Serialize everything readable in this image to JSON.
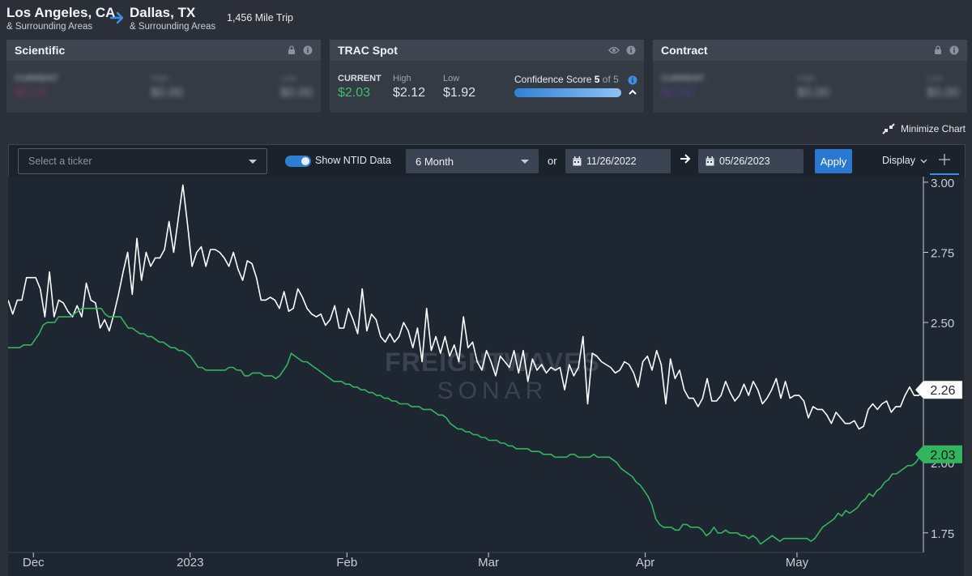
{
  "route": {
    "origin": "Los Angeles, CA",
    "origin_sub": "& Surrounding Areas",
    "destination": "Dallas, TX",
    "destination_sub": "& Surrounding Areas",
    "trip": "1,456 Mile Trip"
  },
  "cards": {
    "scientific": {
      "title": "Scientific",
      "current_label": "CURRENT",
      "current_value": "$0.00",
      "high_label": "High",
      "high_value": "$0.00",
      "low_label": "Low",
      "low_value": "$0.00",
      "current_color": "#b0306a"
    },
    "trac": {
      "title": "TRAC Spot",
      "current_label": "CURRENT",
      "current_value": "$2.03",
      "high_label": "High",
      "high_value": "$2.12",
      "low_label": "Low",
      "low_value": "$1.92",
      "confidence_label": "Confidence Score",
      "confidence_score": "5",
      "confidence_of": "of 5",
      "current_color": "#3fbf6a"
    },
    "contract": {
      "title": "Contract",
      "current_label": "CURRENT",
      "current_value": "$0.00",
      "high_label": "High",
      "high_value": "$0.00",
      "low_label": "Low",
      "low_value": "$0.00",
      "current_color": "#6a3fc2"
    }
  },
  "minimize_label": "Minimize Chart",
  "toolbar": {
    "ticker_placeholder": "Select a ticker",
    "ntid_label": "Show NTID Data",
    "period": "6 Month",
    "or_label": "or",
    "start_date": "11/26/2022",
    "end_date": "05/26/2023",
    "apply_label": "Apply",
    "display_label": "Display"
  },
  "watermark": {
    "line1": "FREIGHTWAVES",
    "line2": "SONAR"
  },
  "chart_data": {
    "type": "line",
    "x_start": "2022-11-26",
    "x_end": "2023-05-26",
    "ylim": [
      1.68,
      3.02
    ],
    "y_ticks": [
      "3.00",
      "2.75",
      "2.50",
      "2.25",
      "2.00",
      "1.75"
    ],
    "x_ticks": [
      {
        "label": "Dec",
        "date": "2022-12-01"
      },
      {
        "label": "2023",
        "date": "2023-01-01"
      },
      {
        "label": "Feb",
        "date": "2023-02-01"
      },
      {
        "label": "Mar",
        "date": "2023-03-01"
      },
      {
        "label": "Apr",
        "date": "2023-04-01"
      },
      {
        "label": "May",
        "date": "2023-05-01"
      }
    ],
    "grid": false,
    "series": [
      {
        "color": "#ffffff",
        "last_label": "2.26",
        "values": [
          2.58,
          2.53,
          2.58,
          2.58,
          2.66,
          2.66,
          2.66,
          2.62,
          2.52,
          2.68,
          2.52,
          2.58,
          2.57,
          2.54,
          2.52,
          2.56,
          2.52,
          2.64,
          2.58,
          2.57,
          2.48,
          2.51,
          2.47,
          2.53,
          2.6,
          2.68,
          2.75,
          2.6,
          2.8,
          2.65,
          2.75,
          2.7,
          2.73,
          2.73,
          2.76,
          2.86,
          2.75,
          2.87,
          2.99,
          2.85,
          2.7,
          2.75,
          2.77,
          2.7,
          2.76,
          2.76,
          2.75,
          2.73,
          2.7,
          2.75,
          2.69,
          2.65,
          2.72,
          2.71,
          2.66,
          2.58,
          2.58,
          2.59,
          2.58,
          2.55,
          2.61,
          2.54,
          2.55,
          2.62,
          2.59,
          2.55,
          2.53,
          2.52,
          2.53,
          2.49,
          2.51,
          2.56,
          2.48,
          2.48,
          2.55,
          2.51,
          2.46,
          2.62,
          2.47,
          2.53,
          2.51,
          2.45,
          2.43,
          2.46,
          2.43,
          2.45,
          2.5,
          2.47,
          2.41,
          2.48,
          2.36,
          2.55,
          2.4,
          2.45,
          2.39,
          2.45,
          2.38,
          2.42,
          2.36,
          2.52,
          2.41,
          2.43,
          2.36,
          2.33,
          2.4,
          2.36,
          2.31,
          2.38,
          2.36,
          2.34,
          2.4,
          2.32,
          2.4,
          2.29,
          2.37,
          2.33,
          2.35,
          2.32,
          2.34,
          2.33,
          2.34,
          2.26,
          2.35,
          2.31,
          2.34,
          2.45,
          2.21,
          2.39,
          2.38,
          2.36,
          2.35,
          2.34,
          2.32,
          2.33,
          2.36,
          2.35,
          2.32,
          2.27,
          2.36,
          2.38,
          2.33,
          2.4,
          2.35,
          2.21,
          2.37,
          2.3,
          2.33,
          2.26,
          2.23,
          2.23,
          2.2,
          2.23,
          2.3,
          2.22,
          2.22,
          2.24,
          2.29,
          2.25,
          2.22,
          2.24,
          2.28,
          2.24,
          2.29,
          2.26,
          2.21,
          2.23,
          2.26,
          2.3,
          2.23,
          2.29,
          2.23,
          2.24,
          2.24,
          2.22,
          2.16,
          2.2,
          2.19,
          2.19,
          2.17,
          2.14,
          2.18,
          2.16,
          2.14,
          2.14,
          2.15,
          2.12,
          2.13,
          2.19,
          2.21,
          2.19,
          2.21,
          2.22,
          2.18,
          2.2,
          2.2,
          2.24,
          2.27,
          2.24,
          2.24,
          2.26
        ]
      },
      {
        "color": "#33b55f",
        "last_label": "2.03",
        "values": [
          2.41,
          2.41,
          2.41,
          2.41,
          2.42,
          2.42,
          2.42,
          2.44,
          2.46,
          2.49,
          2.5,
          2.5,
          2.5,
          2.52,
          2.52,
          2.52,
          2.52,
          2.53,
          2.54,
          2.55,
          2.55,
          2.55,
          2.55,
          2.55,
          2.55,
          2.53,
          2.52,
          2.52,
          2.52,
          2.52,
          2.5,
          2.48,
          2.48,
          2.47,
          2.46,
          2.46,
          2.45,
          2.45,
          2.44,
          2.43,
          2.43,
          2.42,
          2.41,
          2.41,
          2.4,
          2.4,
          2.39,
          2.38,
          2.36,
          2.34,
          2.34,
          2.33,
          2.33,
          2.33,
          2.33,
          2.33,
          2.33,
          2.34,
          2.34,
          2.33,
          2.33,
          2.31,
          2.31,
          2.32,
          2.32,
          2.32,
          2.31,
          2.31,
          2.31,
          2.3,
          2.31,
          2.33,
          2.35,
          2.39,
          2.38,
          2.37,
          2.36,
          2.36,
          2.35,
          2.34,
          2.33,
          2.32,
          2.31,
          2.3,
          2.29,
          2.29,
          2.29,
          2.28,
          2.28,
          2.27,
          2.27,
          2.26,
          2.26,
          2.25,
          2.25,
          2.24,
          2.24,
          2.23,
          2.23,
          2.22,
          2.22,
          2.21,
          2.21,
          2.21,
          2.2,
          2.2,
          2.2,
          2.19,
          2.19,
          2.19,
          2.18,
          2.17,
          2.17,
          2.16,
          2.14,
          2.13,
          2.12,
          2.12,
          2.11,
          2.11,
          2.1,
          2.1,
          2.09,
          2.09,
          2.08,
          2.08,
          2.08,
          2.07,
          2.07,
          2.06,
          2.06,
          2.05,
          2.05,
          2.05,
          2.05,
          2.04,
          2.04,
          2.04,
          2.03,
          2.03,
          2.03,
          2.02,
          2.02,
          2.02,
          2.02,
          2.03,
          2.03,
          2.02,
          2.02,
          2.02,
          2.02,
          2.03,
          2.02,
          2.02,
          2.02,
          2.02,
          2.01,
          2.0,
          1.98,
          1.97,
          1.96,
          1.95,
          1.93,
          1.92,
          1.9,
          1.88,
          1.85,
          1.8,
          1.78,
          1.77,
          1.77,
          1.77,
          1.76,
          1.76,
          1.78,
          1.78,
          1.77,
          1.77,
          1.77,
          1.76,
          1.74,
          1.75,
          1.77,
          1.75,
          1.75,
          1.76,
          1.75,
          1.75,
          1.75,
          1.74,
          1.74,
          1.73,
          1.74,
          1.73,
          1.71,
          1.72,
          1.73,
          1.74,
          1.73,
          1.72,
          1.73,
          1.73,
          1.73,
          1.73,
          1.73,
          1.73,
          1.73,
          1.72,
          1.73,
          1.75,
          1.77,
          1.78,
          1.79,
          1.8,
          1.82,
          1.81,
          1.83,
          1.82,
          1.83,
          1.84,
          1.86,
          1.87,
          1.89,
          1.88,
          1.9,
          1.91,
          1.93,
          1.94,
          1.96,
          1.96,
          1.97,
          1.98,
          1.99,
          1.99,
          2.0,
          2.02,
          2.03
        ]
      }
    ]
  }
}
